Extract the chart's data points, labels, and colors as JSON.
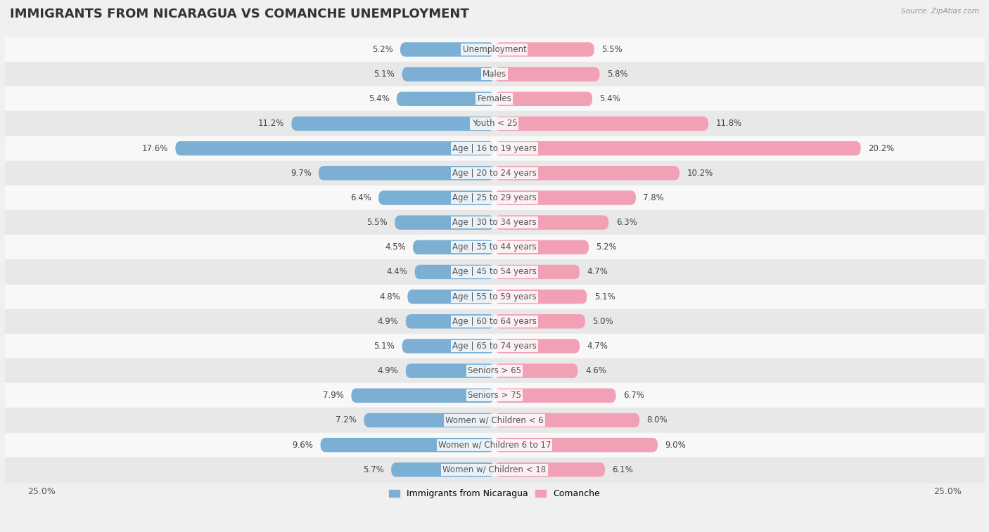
{
  "title": "IMMIGRANTS FROM NICARAGUA VS COMANCHE UNEMPLOYMENT",
  "source": "Source: ZipAtlas.com",
  "categories": [
    "Unemployment",
    "Males",
    "Females",
    "Youth < 25",
    "Age | 16 to 19 years",
    "Age | 20 to 24 years",
    "Age | 25 to 29 years",
    "Age | 30 to 34 years",
    "Age | 35 to 44 years",
    "Age | 45 to 54 years",
    "Age | 55 to 59 years",
    "Age | 60 to 64 years",
    "Age | 65 to 74 years",
    "Seniors > 65",
    "Seniors > 75",
    "Women w/ Children < 6",
    "Women w/ Children 6 to 17",
    "Women w/ Children < 18"
  ],
  "nicaragua_values": [
    5.2,
    5.1,
    5.4,
    11.2,
    17.6,
    9.7,
    6.4,
    5.5,
    4.5,
    4.4,
    4.8,
    4.9,
    5.1,
    4.9,
    7.9,
    7.2,
    9.6,
    5.7
  ],
  "comanche_values": [
    5.5,
    5.8,
    5.4,
    11.8,
    20.2,
    10.2,
    7.8,
    6.3,
    5.2,
    4.7,
    5.1,
    5.0,
    4.7,
    4.6,
    6.7,
    8.0,
    9.0,
    6.1
  ],
  "nicaragua_color": "#7bafd4",
  "comanche_color": "#f2a0b5",
  "bar_height": 0.58,
  "xlim": 25,
  "background_color": "#f0f0f0",
  "row_color_light": "#f8f8f8",
  "row_color_dark": "#e8e8e8",
  "title_fontsize": 13,
  "label_fontsize": 8.5,
  "value_fontsize": 8.5,
  "legend_nicaragua": "Immigrants from Nicaragua",
  "legend_comanche": "Comanche"
}
